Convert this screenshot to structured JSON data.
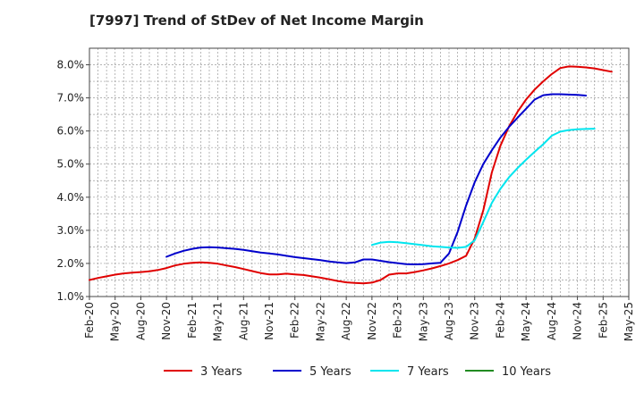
{
  "chart_data": {
    "type": "line",
    "title": "[7997]  Trend of StDev of Net Income Margin",
    "xlabel": "",
    "ylabel": "",
    "x_ticks": [
      "Feb-20",
      "May-20",
      "Aug-20",
      "Nov-20",
      "Feb-21",
      "May-21",
      "Aug-21",
      "Nov-21",
      "Feb-22",
      "May-22",
      "Aug-22",
      "Nov-22",
      "Feb-23",
      "May-23",
      "Aug-23",
      "Nov-23",
      "Feb-24",
      "May-24",
      "Aug-24",
      "Nov-24",
      "Feb-25",
      "May-25"
    ],
    "y_ticks": [
      "1.0%",
      "2.0%",
      "3.0%",
      "4.0%",
      "5.0%",
      "6.0%",
      "7.0%",
      "8.0%"
    ],
    "ylim": [
      1.0,
      8.5
    ],
    "grid": true,
    "legend_position": "bottom",
    "series": [
      {
        "name": "3 Years",
        "color": "#e00000",
        "start_month_index": 0,
        "values": [
          1.5,
          1.56,
          1.61,
          1.66,
          1.7,
          1.72,
          1.74,
          1.76,
          1.8,
          1.86,
          1.94,
          1.99,
          2.02,
          2.03,
          2.02,
          1.99,
          1.94,
          1.89,
          1.83,
          1.77,
          1.71,
          1.67,
          1.67,
          1.69,
          1.67,
          1.65,
          1.61,
          1.57,
          1.52,
          1.47,
          1.43,
          1.41,
          1.4,
          1.42,
          1.5,
          1.66,
          1.7,
          1.7,
          1.74,
          1.79,
          1.85,
          1.92,
          2.0,
          2.1,
          2.23,
          2.75,
          3.6,
          4.75,
          5.55,
          6.13,
          6.58,
          6.95,
          7.25,
          7.5,
          7.72,
          7.9,
          7.95,
          7.94,
          7.92,
          7.89,
          7.84,
          7.79
        ]
      },
      {
        "name": "5 Years",
        "color": "#0000cc",
        "start_month_index": 9,
        "values": [
          2.2,
          2.3,
          2.38,
          2.44,
          2.48,
          2.49,
          2.48,
          2.46,
          2.44,
          2.41,
          2.37,
          2.33,
          2.3,
          2.27,
          2.23,
          2.19,
          2.16,
          2.13,
          2.1,
          2.06,
          2.03,
          2.01,
          2.03,
          2.12,
          2.12,
          2.08,
          2.04,
          2.01,
          1.98,
          1.97,
          1.98,
          2.0,
          2.02,
          2.3,
          2.95,
          3.75,
          4.45,
          5.0,
          5.42,
          5.8,
          6.12,
          6.4,
          6.67,
          6.95,
          7.08,
          7.11,
          7.11,
          7.1,
          7.09,
          7.07
        ]
      },
      {
        "name": "7 Years",
        "color": "#00e5ee",
        "start_month_index": 33,
        "values": [
          2.56,
          2.63,
          2.65,
          2.64,
          2.61,
          2.58,
          2.55,
          2.52,
          2.5,
          2.48,
          2.47,
          2.5,
          2.7,
          3.25,
          3.83,
          4.25,
          4.6,
          4.88,
          5.13,
          5.37,
          5.6,
          5.86,
          5.98,
          6.03,
          6.05,
          6.06,
          6.07
        ]
      },
      {
        "name": "10 Years",
        "color": "#228b22",
        "start_month_index": 0,
        "values": []
      }
    ]
  }
}
